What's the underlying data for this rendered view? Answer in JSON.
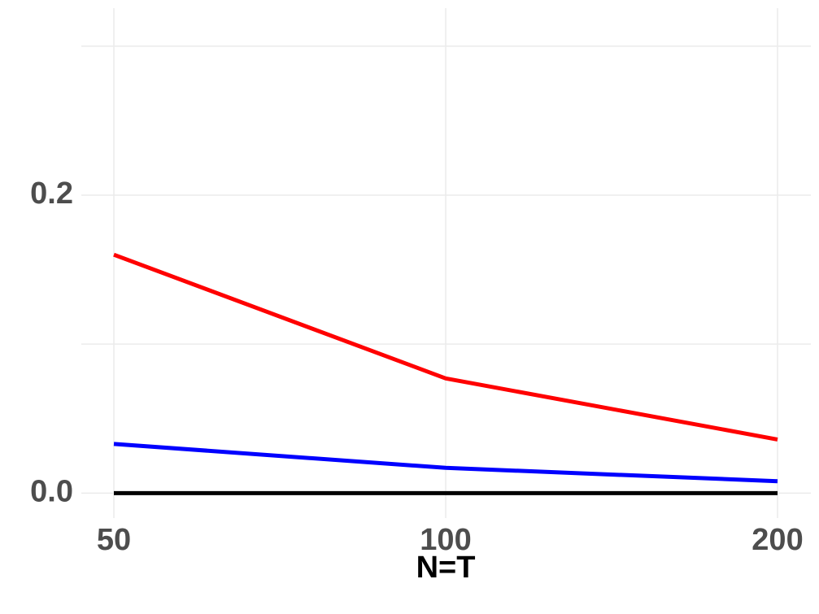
{
  "chart_data": {
    "type": "line",
    "title": "",
    "xlabel": "N=T",
    "ylabel": "",
    "x": [
      50,
      100,
      200
    ],
    "x_tick_labels": [
      "50",
      "100",
      "200"
    ],
    "x_scale": "categorical-equal-spacing",
    "y_ticks": [
      0.0,
      0.2
    ],
    "y_tick_labels": [
      "0.0",
      "0.2"
    ],
    "ylim": [
      -0.0167,
      0.3255
    ],
    "grid": true,
    "legend": "none",
    "series": [
      {
        "color": "#ff0000",
        "values": [
          0.16,
          0.077,
          0.036
        ]
      },
      {
        "color": "#0000ff",
        "values": [
          0.033,
          0.017,
          0.008
        ]
      },
      {
        "color": "#000000",
        "values": [
          0.0,
          0.0,
          0.0
        ]
      }
    ]
  }
}
